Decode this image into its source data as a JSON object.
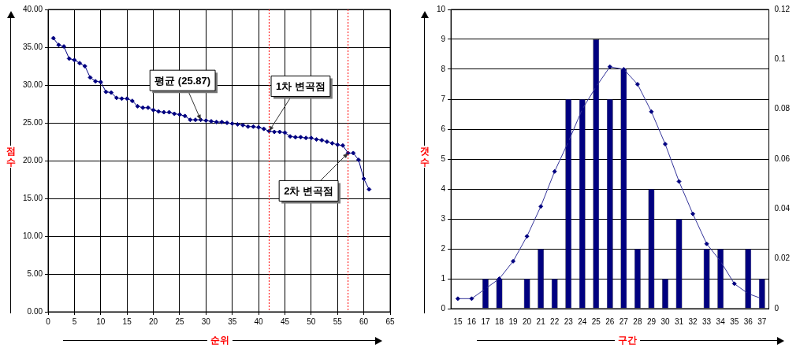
{
  "chart_data": [
    {
      "type": "line",
      "xlabel": "순위",
      "ylabel": "점수",
      "x": [
        1,
        2,
        3,
        4,
        5,
        6,
        7,
        8,
        9,
        10,
        11,
        12,
        13,
        14,
        15,
        16,
        17,
        18,
        19,
        20,
        21,
        22,
        23,
        24,
        25,
        26,
        27,
        28,
        29,
        30,
        31,
        32,
        33,
        34,
        35,
        36,
        37,
        38,
        39,
        40,
        41,
        42,
        43,
        44,
        45,
        46,
        47,
        48,
        49,
        50,
        51,
        52,
        53,
        54,
        55,
        56,
        57,
        58,
        59,
        60,
        61
      ],
      "series": [
        {
          "color": "#000080",
          "values": [
            36.2,
            35.3,
            35.1,
            33.5,
            33.3,
            32.9,
            32.5,
            31.0,
            30.5,
            30.4,
            29.1,
            29.0,
            28.3,
            28.2,
            28.2,
            27.9,
            27.2,
            27.0,
            27.0,
            26.7,
            26.5,
            26.4,
            26.4,
            26.2,
            26.1,
            25.9,
            25.4,
            25.4,
            25.4,
            25.3,
            25.2,
            25.1,
            25.1,
            25.0,
            24.9,
            24.8,
            24.7,
            24.5,
            24.5,
            24.4,
            24.2,
            23.9,
            23.8,
            23.8,
            23.7,
            23.2,
            23.1,
            23.1,
            23.0,
            23.0,
            22.8,
            22.7,
            22.5,
            22.3,
            22.1,
            22.0,
            21.0,
            21.0,
            20.1,
            17.6,
            16.2
          ]
        }
      ],
      "xlim": [
        0,
        65
      ],
      "xticks": [
        0,
        5,
        10,
        15,
        20,
        25,
        30,
        35,
        40,
        45,
        50,
        55,
        60,
        65
      ],
      "ylim": [
        0,
        40
      ],
      "yticks": [
        {
          "value": 0,
          "label": "0.00"
        },
        {
          "value": 5,
          "label": "5.00"
        },
        {
          "value": 10,
          "label": "10.00"
        },
        {
          "value": 15,
          "label": "15.00"
        },
        {
          "value": 20,
          "label": "20.00"
        },
        {
          "value": 25,
          "label": "25.00"
        },
        {
          "value": 30,
          "label": "30.00"
        },
        {
          "value": 35,
          "label": "35.00"
        },
        {
          "value": 40,
          "label": "40.00"
        }
      ],
      "grid": true,
      "marker": "diamond",
      "line_style": "solid",
      "ref_lines": [
        {
          "axis": "x",
          "value": 42,
          "color": "#ff0000",
          "line_style": "dotted"
        },
        {
          "axis": "x",
          "value": 57,
          "color": "#ff0000",
          "line_style": "dotted"
        }
      ],
      "annotations": [
        {
          "text": "평균 (25.87)",
          "x": 29,
          "y": 25.4
        },
        {
          "text": "1차 변곡점",
          "x": 42,
          "y": 23.9
        },
        {
          "text": "2차 변곡점",
          "x": 57,
          "y": 21.0
        }
      ]
    },
    {
      "type": "bar",
      "xlabel": "구간",
      "ylabel": "갯수",
      "categories": [
        "15",
        "16",
        "17",
        "18",
        "19",
        "20",
        "21",
        "22",
        "23",
        "24",
        "25",
        "26",
        "27",
        "28",
        "29",
        "30",
        "31",
        "32",
        "33",
        "34",
        "35",
        "36",
        "37"
      ],
      "series": [
        {
          "color": "#000080",
          "values": [
            0,
            0,
            1,
            1,
            0,
            1,
            2,
            1,
            7,
            7,
            9,
            7,
            8,
            2,
            4,
            1,
            3,
            0,
            2,
            2,
            0,
            2,
            1
          ]
        },
        {
          "type": "line",
          "axis": "y2",
          "color": "#333399",
          "values": [
            0.004,
            0.004,
            0.008,
            0.012,
            0.019,
            0.029,
            0.041,
            0.055,
            0.067,
            0.08,
            0.089,
            0.097,
            0.096,
            0.09,
            0.079,
            0.066,
            0.051,
            0.038,
            0.026,
            0.019,
            0.01,
            0.006,
            0.004
          ]
        }
      ],
      "ylim": [
        0,
        10
      ],
      "yticks": [
        0,
        1,
        2,
        3,
        4,
        5,
        6,
        7,
        8,
        9,
        10
      ],
      "y2lim": [
        0,
        0.12
      ],
      "y2ticks": [
        0,
        0.02,
        0.04,
        0.06,
        0.08,
        0.1,
        0.12
      ],
      "grid": "y",
      "marker": "diamond"
    }
  ]
}
